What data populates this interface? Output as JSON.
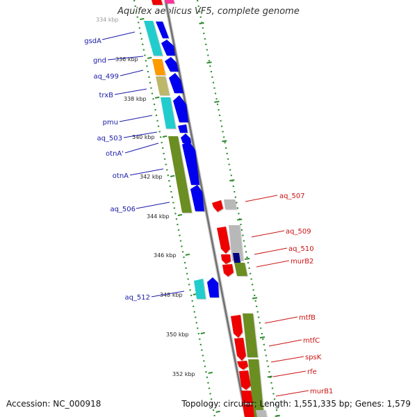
{
  "title": "Aquifex aeolicus VF5, complete genome",
  "footer": {
    "accession": "Accession: NC_000918",
    "topology": "Topology: circular; Length: 1,551,335 bp; Genes: 1,579"
  },
  "colors": {
    "backbone": "#8a8a8a",
    "tick": "#2e8b2e",
    "label_forward": "#1a1aa8",
    "label_reverse": "#cc1111",
    "blue": "#0000ee",
    "red": "#ee0000",
    "cyan": "#22cccc",
    "olive": "#6b8e23",
    "orange": "#ff9900",
    "khaki": "#bdb76b",
    "gray": "#b8b8b8",
    "navy": "#000080",
    "magenta": "#ff3399"
  },
  "scale_labels": [
    "334 kbp",
    "336 kbp",
    "338 kbp",
    "340 kbp",
    "342 kbp",
    "344 kbp",
    "346 kbp",
    "348 kbp",
    "350 kbp",
    "352 kbp"
  ],
  "genes_left": [
    {
      "label": "gsdA"
    },
    {
      "label": "gnd"
    },
    {
      "label": "aq_499"
    },
    {
      "label": "trxB"
    },
    {
      "label": "pmu"
    },
    {
      "label": "aq_503"
    },
    {
      "label": "otnA'"
    },
    {
      "label": "otnA"
    },
    {
      "label": "aq_506"
    },
    {
      "label": "aq_512"
    }
  ],
  "genes_right": [
    {
      "label": "aq_507"
    },
    {
      "label": "aq_509"
    },
    {
      "label": "aq_510"
    },
    {
      "label": "murB2"
    },
    {
      "label": "mtfB"
    },
    {
      "label": "mtfC"
    },
    {
      "label": "spsK"
    },
    {
      "label": "rfe"
    },
    {
      "label": "murB1"
    }
  ]
}
